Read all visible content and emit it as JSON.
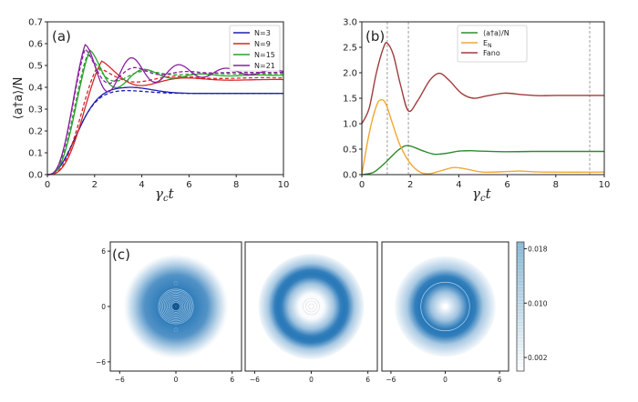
{
  "chart_data": [
    {
      "panel": "(a)",
      "type": "line",
      "title": "",
      "xlabel": "γ_c t",
      "ylabel": "⟨a†a⟩/N",
      "xlim": [
        0,
        10
      ],
      "ylim": [
        0,
        0.7
      ],
      "xticks": [
        "0",
        "2",
        "4",
        "6",
        "8",
        "10"
      ],
      "yticks": [
        "0.0",
        "0.1",
        "0.2",
        "0.3",
        "0.4",
        "0.5",
        "0.6",
        "0.7"
      ],
      "legend": {
        "placement": "top-right",
        "entries": [
          "N=3",
          "N=9",
          "N=15",
          "N=21"
        ]
      },
      "grid": false,
      "line_styles": {
        "solid": "exact",
        "dashed": "approximation"
      },
      "series": [
        {
          "name": "N=3",
          "color": "#1f1fb4",
          "solid": {
            "rise": 1.55,
            "peak_t": 3.5,
            "peak": 0.4,
            "final": 0.372
          },
          "dashed": {
            "rise": 1.5,
            "peak_t": 3.3,
            "peak": 0.385,
            "final": 0.372
          }
        },
        {
          "name": "N=9",
          "color": "#d62728",
          "solid": {
            "peak_t": 2.3,
            "peak": 0.52,
            "min_t": 4.2,
            "min": 0.41,
            "final": 0.435
          },
          "dashed": {
            "peak_t": 2.1,
            "peak": 0.49,
            "min_t": 3.9,
            "min": 0.425,
            "final": 0.443
          }
        },
        {
          "name": "N=15",
          "color": "#2ca02c",
          "solid": {
            "peak_t": 1.8,
            "peak": 0.57,
            "min_t": 3.0,
            "min": 0.4,
            "final": 0.455
          },
          "dashed": {
            "peak_t": 1.7,
            "peak": 0.55,
            "min_t": 3.0,
            "min": 0.43,
            "final": 0.462
          }
        },
        {
          "name": "N=21",
          "color": "#8b1fa0",
          "solid": {
            "peak_t": 1.6,
            "peak": 0.595,
            "min_t": 2.6,
            "min": 0.38,
            "final": 0.47
          },
          "dashed": {
            "peak_t": 1.6,
            "peak": 0.575,
            "min_t": 2.7,
            "min": 0.42,
            "final": 0.468
          }
        }
      ]
    },
    {
      "panel": "(b)",
      "type": "line",
      "title": "",
      "xlabel": "γ_c t",
      "ylabel": "",
      "xlim": [
        0,
        10
      ],
      "ylim": [
        0,
        3.0
      ],
      "xticks": [
        "0",
        "2",
        "4",
        "6",
        "8",
        "10"
      ],
      "yticks": [
        "0.0",
        "0.5",
        "1.0",
        "1.5",
        "2.0",
        "2.5",
        "3.0"
      ],
      "legend": {
        "placement": "top-center",
        "entries": [
          "⟨a†a⟩/N",
          "E_N",
          "Fano"
        ]
      },
      "vlines": [
        1.05,
        1.92,
        9.4
      ],
      "grid": false,
      "series": [
        {
          "name": "⟨a†a⟩/N",
          "color": "#2e8b2e",
          "x": [
            0,
            0.5,
            1.0,
            1.5,
            1.9,
            2.5,
            3.0,
            3.5,
            4.0,
            4.5,
            5.0,
            6.0,
            7.0,
            8.0,
            10.0
          ],
          "values": [
            0,
            0.05,
            0.25,
            0.48,
            0.57,
            0.47,
            0.4,
            0.42,
            0.46,
            0.47,
            0.46,
            0.45,
            0.455,
            0.455,
            0.455
          ]
        },
        {
          "name": "E_N",
          "color": "#f0a830",
          "x": [
            0,
            0.3,
            0.6,
            0.8,
            1.0,
            1.3,
            1.6,
            2.0,
            2.4,
            2.8,
            3.3,
            3.8,
            4.3,
            5.0,
            6.0,
            6.5,
            7.5,
            10.0
          ],
          "values": [
            0,
            0.8,
            1.35,
            1.47,
            1.38,
            0.95,
            0.55,
            0.22,
            0.05,
            0.02,
            0.08,
            0.14,
            0.11,
            0.05,
            0.06,
            0.07,
            0.05,
            0.05
          ]
        },
        {
          "name": "Fano",
          "color": "#a03c3c",
          "x": [
            0,
            0.3,
            0.6,
            0.9,
            1.05,
            1.3,
            1.6,
            1.92,
            2.3,
            2.8,
            3.2,
            3.6,
            4.1,
            4.6,
            5.2,
            5.9,
            6.6,
            7.3,
            8.0,
            10.0
          ],
          "values": [
            1.0,
            1.3,
            2.0,
            2.5,
            2.58,
            2.35,
            1.75,
            1.25,
            1.45,
            1.85,
            1.99,
            1.85,
            1.6,
            1.5,
            1.55,
            1.6,
            1.57,
            1.55,
            1.555,
            1.555
          ]
        }
      ]
    },
    {
      "panel": "(c)",
      "type": "heatmap",
      "title": "",
      "xlim": [
        -7,
        7
      ],
      "ylim": [
        -7,
        7
      ],
      "xticks": [
        "−6",
        "0",
        "6"
      ],
      "yticks": [
        "6",
        "0",
        "−6"
      ],
      "colormap": "Blues",
      "colorbar": {
        "ticks": [
          "0.018",
          "0.010",
          "0.002"
        ],
        "range": [
          0,
          0.019
        ]
      },
      "subplots": [
        {
          "name": "state-1",
          "shape": "disk",
          "center_radius": 0,
          "width": 2.8,
          "contour_rings_at_center": true
        },
        {
          "name": "state-2",
          "shape": "ring",
          "ring_radius": 3.5,
          "width": 0.9
        },
        {
          "name": "state-3",
          "shape": "ring",
          "ring_radius": 2.9,
          "width": 1.1
        }
      ]
    }
  ],
  "labels": {
    "panel_a": "(a)",
    "panel_b": "(b)",
    "panel_c": "(c)",
    "xlabel_a": "γ",
    "xlabel_sub": "c",
    "xlabel_t": "t",
    "ylabel_a": "⟨a†a⟩/N",
    "legend_b_0": "⟨a†a⟩/N",
    "legend_b_1": "E",
    "legend_b_1_sub": "N",
    "legend_b_2": "Fano"
  }
}
